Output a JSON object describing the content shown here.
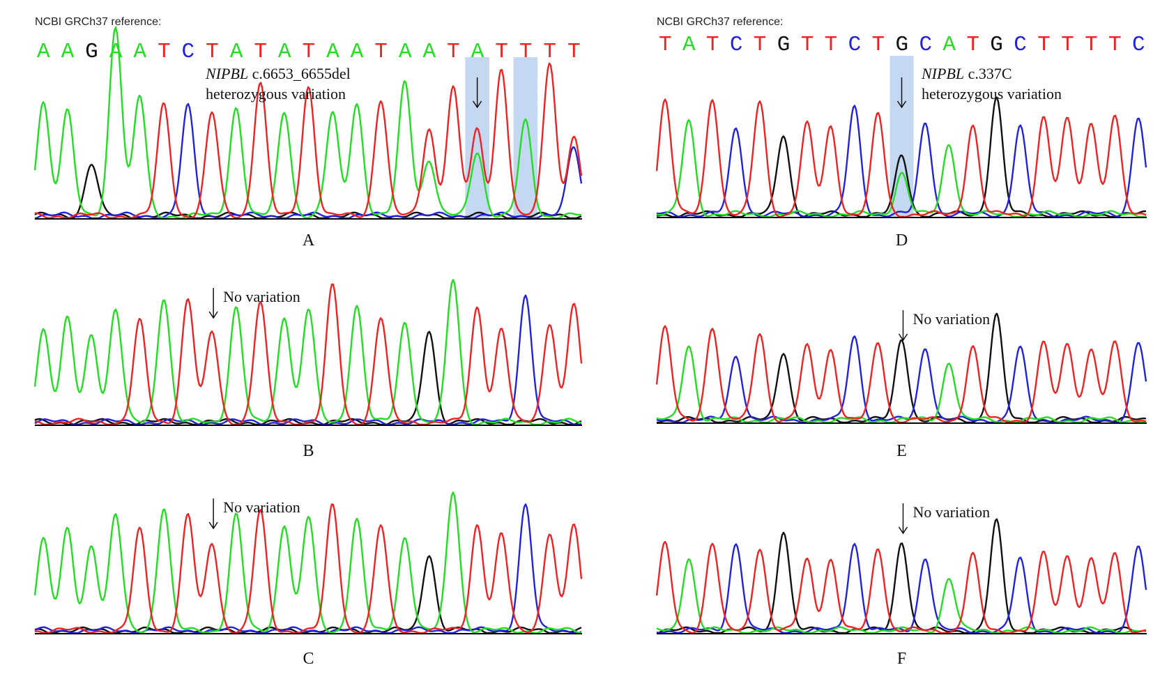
{
  "figure": {
    "reference_label": "NCBI GRCh37 reference:",
    "colors": {
      "A": "#22dd22",
      "T": "#ee2222",
      "C": "#2222dd",
      "G": "#111111",
      "highlight": "#c5d8f2",
      "baseline": "#000000"
    }
  },
  "chart_data": [
    {
      "type": "line",
      "panel": "A",
      "letter": "A",
      "reference_sequence": "AAGAATCTATATAATAATATTTT",
      "annotation": {
        "gene": "NIPBL",
        "variant": " c.6653_6655del",
        "line2": "heterozygous variation"
      },
      "highlight_peaks": [
        18,
        20
      ],
      "arrow_peak": 18,
      "peaks": [
        {
          "base": "A",
          "h": 0.55
        },
        {
          "base": "A",
          "h": 0.5
        },
        {
          "base": "G",
          "h": 0.25
        },
        {
          "base": "A",
          "h": 0.91
        },
        {
          "base": "A",
          "h": 0.57
        },
        {
          "base": "T",
          "h": 0.53
        },
        {
          "base": "C",
          "h": 0.52
        },
        {
          "base": "T",
          "h": 0.49
        },
        {
          "base": "A",
          "h": 0.52
        },
        {
          "base": "T",
          "h": 0.64
        },
        {
          "base": "A",
          "h": 0.5
        },
        {
          "base": "T",
          "h": 0.62
        },
        {
          "base": "A",
          "h": 0.49
        },
        {
          "base": "A",
          "h": 0.54
        },
        {
          "base": "T",
          "h": 0.56
        },
        {
          "base": "A",
          "h": 0.64
        },
        {
          "base": "T",
          "h": 0.42,
          "sec": {
            "base": "A",
            "h": 0.27
          }
        },
        {
          "base": "T",
          "h": 0.61
        },
        {
          "base": "T",
          "h": 0.41,
          "sec": {
            "base": "A",
            "h": 0.31
          }
        },
        {
          "base": "T",
          "h": 0.71
        },
        {
          "base": "A",
          "h": 0.45
        },
        {
          "base": "T",
          "h": 0.74
        },
        {
          "base": "T",
          "h": 0.38,
          "sec": {
            "base": "C",
            "h": 0.33
          }
        }
      ]
    },
    {
      "type": "line",
      "panel": "B",
      "letter": "B",
      "annotation": {
        "text": "No variation"
      },
      "arrow_peak": 7,
      "peaks": [
        {
          "base": "A",
          "h": 0.45
        },
        {
          "base": "A",
          "h": 0.49
        },
        {
          "base": "A",
          "h": 0.42
        },
        {
          "base": "A",
          "h": 0.54
        },
        {
          "base": "T",
          "h": 0.48
        },
        {
          "base": "A",
          "h": 0.6
        },
        {
          "base": "T",
          "h": 0.59
        },
        {
          "base": "T",
          "h": 0.43
        },
        {
          "base": "A",
          "h": 0.55
        },
        {
          "base": "T",
          "h": 0.57
        },
        {
          "base": "A",
          "h": 0.51
        },
        {
          "base": "A",
          "h": 0.54
        },
        {
          "base": "T",
          "h": 0.65
        },
        {
          "base": "A",
          "h": 0.56
        },
        {
          "base": "T",
          "h": 0.5
        },
        {
          "base": "A",
          "h": 0.48
        },
        {
          "base": "G",
          "h": 0.44
        },
        {
          "base": "A",
          "h": 0.68
        },
        {
          "base": "T",
          "h": 0.55
        },
        {
          "base": "T",
          "h": 0.45
        },
        {
          "base": "C",
          "h": 0.61
        },
        {
          "base": "T",
          "h": 0.48
        },
        {
          "base": "T",
          "h": 0.56
        }
      ]
    },
    {
      "type": "line",
      "panel": "C",
      "letter": "C",
      "annotation": {
        "text": "No variation"
      },
      "arrow_peak": 7,
      "peaks": [
        {
          "base": "A",
          "h": 0.44
        },
        {
          "base": "A",
          "h": 0.48
        },
        {
          "base": "A",
          "h": 0.41
        },
        {
          "base": "A",
          "h": 0.55
        },
        {
          "base": "T",
          "h": 0.48
        },
        {
          "base": "A",
          "h": 0.59
        },
        {
          "base": "T",
          "h": 0.55
        },
        {
          "base": "T",
          "h": 0.42
        },
        {
          "base": "A",
          "h": 0.55
        },
        {
          "base": "T",
          "h": 0.57
        },
        {
          "base": "A",
          "h": 0.51
        },
        {
          "base": "A",
          "h": 0.54
        },
        {
          "base": "T",
          "h": 0.6
        },
        {
          "base": "A",
          "h": 0.53
        },
        {
          "base": "T",
          "h": 0.5
        },
        {
          "base": "A",
          "h": 0.45
        },
        {
          "base": "G",
          "h": 0.37
        },
        {
          "base": "A",
          "h": 0.67
        },
        {
          "base": "T",
          "h": 0.51
        },
        {
          "base": "T",
          "h": 0.46
        },
        {
          "base": "C",
          "h": 0.6
        },
        {
          "base": "T",
          "h": 0.47
        },
        {
          "base": "T",
          "h": 0.5
        }
      ]
    },
    {
      "type": "line",
      "panel": "D",
      "letter": "D",
      "reference_sequence": "TATCTGTTCTGCATGCTTTTC",
      "annotation": {
        "gene": "NIPBL",
        "variant": " c.337C",
        "line2": "heterozygous variation"
      },
      "highlight_peaks": [
        10
      ],
      "arrow_peak": 10,
      "peaks": [
        {
          "base": "T",
          "h": 0.55
        },
        {
          "base": "A",
          "h": 0.45
        },
        {
          "base": "T",
          "h": 0.56
        },
        {
          "base": "C",
          "h": 0.41
        },
        {
          "base": "T",
          "h": 0.54
        },
        {
          "base": "G",
          "h": 0.38
        },
        {
          "base": "T",
          "h": 0.43
        },
        {
          "base": "T",
          "h": 0.42
        },
        {
          "base": "C",
          "h": 0.51
        },
        {
          "base": "T",
          "h": 0.48
        },
        {
          "base": "G",
          "h": 0.28,
          "sec": {
            "base": "A",
            "h": 0.2
          }
        },
        {
          "base": "C",
          "h": 0.44
        },
        {
          "base": "A",
          "h": 0.34
        },
        {
          "base": "T",
          "h": 0.43
        },
        {
          "base": "G",
          "h": 0.56
        },
        {
          "base": "C",
          "h": 0.42
        },
        {
          "base": "T",
          "h": 0.47
        },
        {
          "base": "T",
          "h": 0.46
        },
        {
          "base": "T",
          "h": 0.45
        },
        {
          "base": "T",
          "h": 0.47
        },
        {
          "base": "C",
          "h": 0.47
        }
      ]
    },
    {
      "type": "line",
      "panel": "E",
      "letter": "E",
      "annotation": {
        "text": "No variation"
      },
      "arrow_peak": 10,
      "peaks": [
        {
          "base": "T",
          "h": 0.44
        },
        {
          "base": "A",
          "h": 0.36
        },
        {
          "base": "T",
          "h": 0.45
        },
        {
          "base": "C",
          "h": 0.31
        },
        {
          "base": "T",
          "h": 0.42
        },
        {
          "base": "G",
          "h": 0.33
        },
        {
          "base": "T",
          "h": 0.35
        },
        {
          "base": "T",
          "h": 0.34
        },
        {
          "base": "C",
          "h": 0.4
        },
        {
          "base": "T",
          "h": 0.37
        },
        {
          "base": "G",
          "h": 0.39
        },
        {
          "base": "C",
          "h": 0.35
        },
        {
          "base": "A",
          "h": 0.28
        },
        {
          "base": "T",
          "h": 0.35
        },
        {
          "base": "G",
          "h": 0.5
        },
        {
          "base": "C",
          "h": 0.34
        },
        {
          "base": "T",
          "h": 0.37
        },
        {
          "base": "T",
          "h": 0.37
        },
        {
          "base": "T",
          "h": 0.35
        },
        {
          "base": "T",
          "h": 0.37
        },
        {
          "base": "C",
          "h": 0.37
        }
      ]
    },
    {
      "type": "line",
      "panel": "F",
      "letter": "F",
      "annotation": {
        "text": "No variation"
      },
      "arrow_peak": 10,
      "peaks": [
        {
          "base": "T",
          "h": 0.41
        },
        {
          "base": "A",
          "h": 0.35
        },
        {
          "base": "T",
          "h": 0.42
        },
        {
          "base": "C",
          "h": 0.42
        },
        {
          "base": "T",
          "h": 0.4
        },
        {
          "base": "G",
          "h": 0.48
        },
        {
          "base": "T",
          "h": 0.34
        },
        {
          "base": "T",
          "h": 0.34
        },
        {
          "base": "C",
          "h": 0.42
        },
        {
          "base": "T",
          "h": 0.4
        },
        {
          "base": "G",
          "h": 0.43
        },
        {
          "base": "C",
          "h": 0.35
        },
        {
          "base": "A",
          "h": 0.25
        },
        {
          "base": "T",
          "h": 0.36
        },
        {
          "base": "G",
          "h": 0.52
        },
        {
          "base": "C",
          "h": 0.34
        },
        {
          "base": "T",
          "h": 0.37
        },
        {
          "base": "T",
          "h": 0.37
        },
        {
          "base": "T",
          "h": 0.35
        },
        {
          "base": "T",
          "h": 0.37
        },
        {
          "base": "C",
          "h": 0.4
        }
      ]
    }
  ]
}
